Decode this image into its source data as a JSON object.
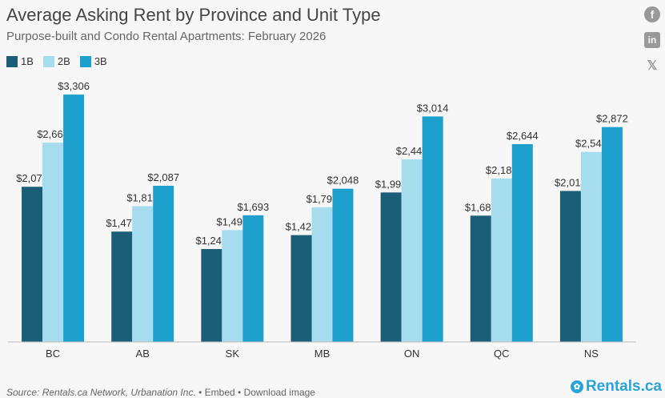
{
  "header": {
    "title": "Average Asking Rent by Province and Unit Type",
    "subtitle": "Purpose-built and Condo Rental Apartments: February 2026"
  },
  "social": {
    "facebook_icon": "f",
    "linkedin_icon": "in",
    "x_icon": "𝕏"
  },
  "footer": {
    "source": "Source: Rentals.ca Network, Urbanation Inc.",
    "embed": "Embed",
    "download": "Download image",
    "brand": "Rentals.ca"
  },
  "chart_data": {
    "type": "bar",
    "categories": [
      "BC",
      "AB",
      "SK",
      "MB",
      "ON",
      "QC",
      "NS"
    ],
    "series": [
      {
        "name": "1B",
        "color": "#1a5e78",
        "values": [
          2074,
          1475,
          1242,
          1428,
          1998,
          1688,
          2018
        ]
      },
      {
        "name": "2B",
        "color": "#a6ddee",
        "values": [
          2664,
          1815,
          1495,
          1799,
          2440,
          2185,
          2540
        ]
      },
      {
        "name": "3B",
        "color": "#1ea0cf",
        "values": [
          3306,
          2087,
          1693,
          2048,
          3014,
          2644,
          2872
        ]
      }
    ],
    "ylim": [
      0,
      3500
    ],
    "value_prefix": "$",
    "legend_position": "top-left",
    "grid": false
  }
}
